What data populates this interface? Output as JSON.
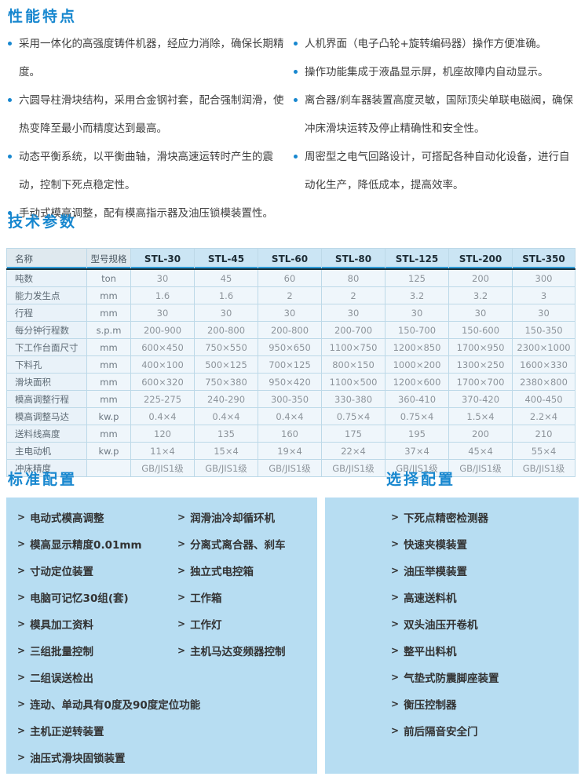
{
  "colors": {
    "accent_blue": "#1787cf",
    "panel_bg": "#b7ddf2",
    "model_header_bg": "#cbe5f4",
    "name_header_bg": "#dfe9ef",
    "row_bg": "#eff6fb",
    "grid_line": "#bdd9e8",
    "header_dark_line": "#16303c",
    "body_text": "#3f3f3f"
  },
  "features": {
    "title": "性能特点",
    "left": [
      "采用一体化的高强度铸件机器，经应力消除，确保长期精度。",
      "六圆导柱滑块结构，采用合金钢衬套，配合强制润滑，使热变降至最小而精度达到最高。",
      "动态平衡系统，以平衡曲轴，滑块高速运转时产生的震动，控制下死点稳定性。",
      "手动式模高调整，配有模高指示器及油压锁模装置性。"
    ],
    "right": [
      "人机界面（电子凸轮+旋转编码器）操作方便准确。",
      "操作功能集成于液晶显示屏，机座故障内自动显示。",
      "离合器/刹车器装置高度灵敏，国际顶尖单联电磁阀，确保冲床滑块运转及停止精确性和安全性。",
      "周密型之电气回路设计，可搭配各种自动化设备，进行自动化生产，降低成本，提高效率。"
    ]
  },
  "specs": {
    "title": "技术参数",
    "table": {
      "name_header": "名称",
      "unit_header": "型号规格",
      "models": [
        "STL-30",
        "STL-45",
        "STL-60",
        "STL-80",
        "STL-125",
        "STL-200",
        "STL-350"
      ],
      "rows": [
        {
          "label": "吨数",
          "unit": "ton",
          "values": [
            "30",
            "45",
            "60",
            "80",
            "125",
            "200",
            "300"
          ]
        },
        {
          "label": "能力发生点",
          "unit": "mm",
          "values": [
            "1.6",
            "1.6",
            "2",
            "2",
            "3.2",
            "3.2",
            "3"
          ]
        },
        {
          "label": "行程",
          "unit": "mm",
          "values": [
            "30",
            "30",
            "30",
            "30",
            "30",
            "30",
            "30"
          ]
        },
        {
          "label": "每分钟行程数",
          "unit": "s.p.m",
          "values": [
            "200-900",
            "200-800",
            "200-800",
            "200-700",
            "150-700",
            "150-600",
            "150-350"
          ]
        },
        {
          "label": "下工作台面尺寸",
          "unit": "mm",
          "values": [
            "600×450",
            "750×550",
            "950×650",
            "1100×750",
            "1200×850",
            "1700×950",
            "2300×1000"
          ]
        },
        {
          "label": "下料孔",
          "unit": "mm",
          "values": [
            "400×100",
            "500×125",
            "700×125",
            "800×150",
            "1000×200",
            "1300×250",
            "1600×330"
          ]
        },
        {
          "label": "滑块面积",
          "unit": "mm",
          "values": [
            "600×320",
            "750×380",
            "950×420",
            "1100×500",
            "1200×600",
            "1700×700",
            "2380×800"
          ]
        },
        {
          "label": "模高调整行程",
          "unit": "mm",
          "values": [
            "225-275",
            "240-290",
            "300-350",
            "330-380",
            "360-410",
            "370-420",
            "400-450"
          ]
        },
        {
          "label": "模高调整马达",
          "unit": "kw.p",
          "values": [
            "0.4×4",
            "0.4×4",
            "0.4×4",
            "0.75×4",
            "0.75×4",
            "1.5×4",
            "2.2×4"
          ]
        },
        {
          "label": "送料线高度",
          "unit": "mm",
          "values": [
            "120",
            "135",
            "160",
            "175",
            "195",
            "200",
            "210"
          ]
        },
        {
          "label": "主电动机",
          "unit": "kw.p",
          "values": [
            "11×4",
            "15×4",
            "19×4",
            "22×4",
            "37×4",
            "45×4",
            "55×4"
          ]
        },
        {
          "label": "冲床精度",
          "unit": "",
          "values": [
            "GB/JIS1级",
            "GB/JIS1级",
            "GB/JIS1级",
            "GB/JIS1级",
            "GB/JIS1级",
            "GB/JIS1级",
            "GB/JIS1级"
          ]
        }
      ]
    }
  },
  "standard_config": {
    "title": "标准配置",
    "marker": ">",
    "col1": [
      "电动式模高调整",
      "模高显示精度0.01mm",
      "寸动定位装置",
      "电脑可记忆30组(套)",
      "模具加工资料",
      "三组批量控制",
      "二组误送检出",
      "连动、单动具有0度及90度定位功能",
      "主机正逆转装置",
      "油压式滑块固锁装置"
    ],
    "col2": [
      "润滑油冷却循环机",
      "分离式离合器、刹车",
      "独立式电控箱",
      "工作箱",
      "工作灯",
      "主机马达变频器控制"
    ]
  },
  "optional_config": {
    "title": "选择配置",
    "marker": ">",
    "items": [
      "下死点精密检测器",
      "快速夹模装置",
      "油压举模装置",
      "高速送料机",
      "双头油压开卷机",
      "整平出料机",
      "气垫式防震脚座装置",
      "衡压控制器",
      "前后隔音安全门"
    ]
  }
}
